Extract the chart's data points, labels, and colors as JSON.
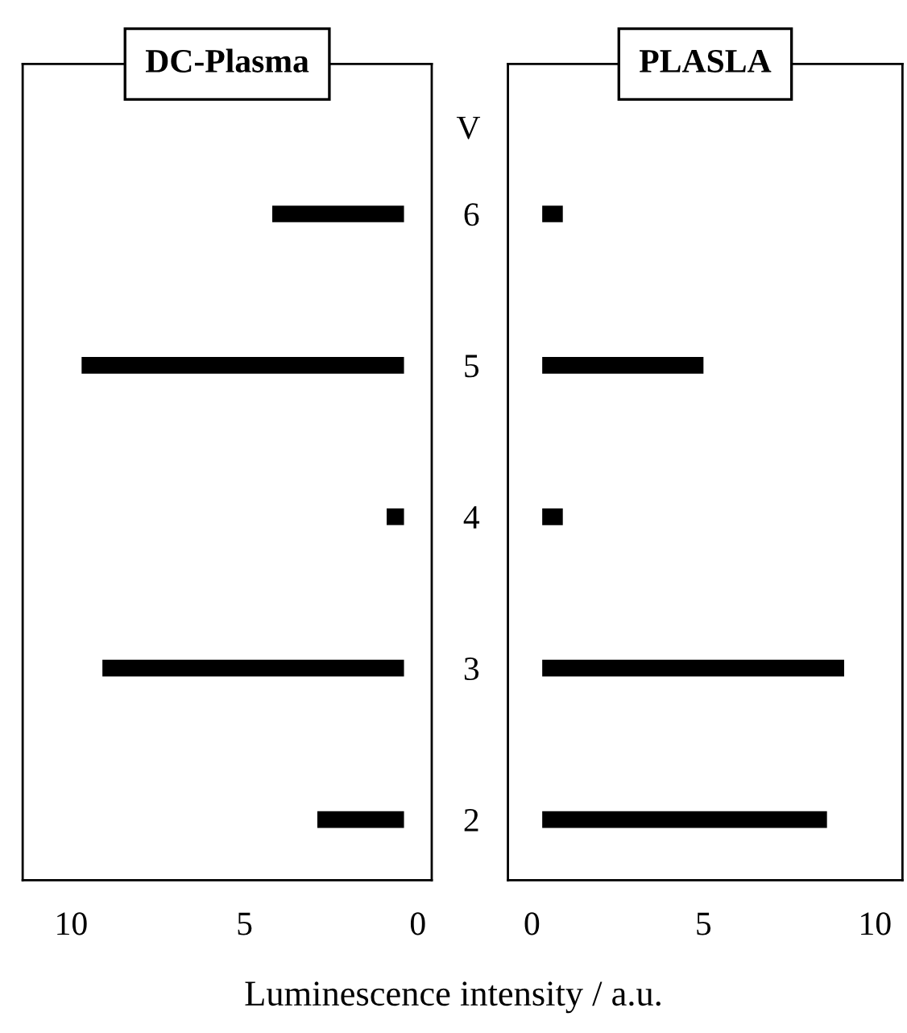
{
  "chart_data": [
    {
      "type": "bar",
      "orientation": "horizontal",
      "title": "DC-Plasma",
      "ylabel": "V",
      "xlabel": "Luminescence intensity / a.u.",
      "categories": [
        "6",
        "5",
        "4",
        "3",
        "2"
      ],
      "base": [
        0.4,
        0.4,
        0.4,
        0.4,
        0.4
      ],
      "values": [
        3.8,
        9.3,
        0.5,
        8.7,
        2.5
      ],
      "color": "#000000",
      "xlim": [
        11.4,
        -0.4
      ],
      "xticks": [
        10,
        5,
        0
      ]
    },
    {
      "type": "bar",
      "orientation": "horizontal",
      "title": "PLASLA",
      "categories": [
        "6",
        "5",
        "4",
        "3",
        "2"
      ],
      "base": [
        0.3,
        0.3,
        0.3,
        0.3,
        0.3
      ],
      "values": [
        0.6,
        4.7,
        0.6,
        8.8,
        8.3
      ],
      "color": "#000000",
      "xlim": [
        -0.7,
        10.8
      ],
      "xticks": [
        0,
        5,
        10
      ],
      "tick_labels": "x"
    }
  ]
}
